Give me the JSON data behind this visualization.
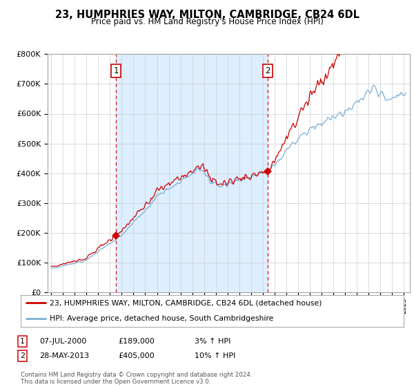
{
  "title": "23, HUMPHRIES WAY, MILTON, CAMBRIDGE, CB24 6DL",
  "subtitle": "Price paid vs. HM Land Registry's House Price Index (HPI)",
  "hpi_label": "HPI: Average price, detached house, South Cambridgeshire",
  "price_label": "23, HUMPHRIES WAY, MILTON, CAMBRIDGE, CB24 6DL (detached house)",
  "sale1_date": "07-JUL-2000",
  "sale1_price": 189000,
  "sale1_hpi": "3% ↑ HPI",
  "sale2_date": "28-MAY-2013",
  "sale2_price": 405000,
  "sale2_hpi": "10% ↑ HPI",
  "footer": "Contains HM Land Registry data © Crown copyright and database right 2024.\nThis data is licensed under the Open Government Licence v3.0.",
  "price_color": "#cc0000",
  "hpi_color": "#7aaed6",
  "fill_color": "#ddeeff",
  "vline_color": "#cc0000",
  "grid_color": "#cccccc",
  "bg_color": "#ffffff",
  "ylim_max": 800000,
  "xlim_start": 1994.7,
  "xlim_end": 2025.5,
  "sale1_t": 2000.515,
  "sale2_t": 2013.405
}
